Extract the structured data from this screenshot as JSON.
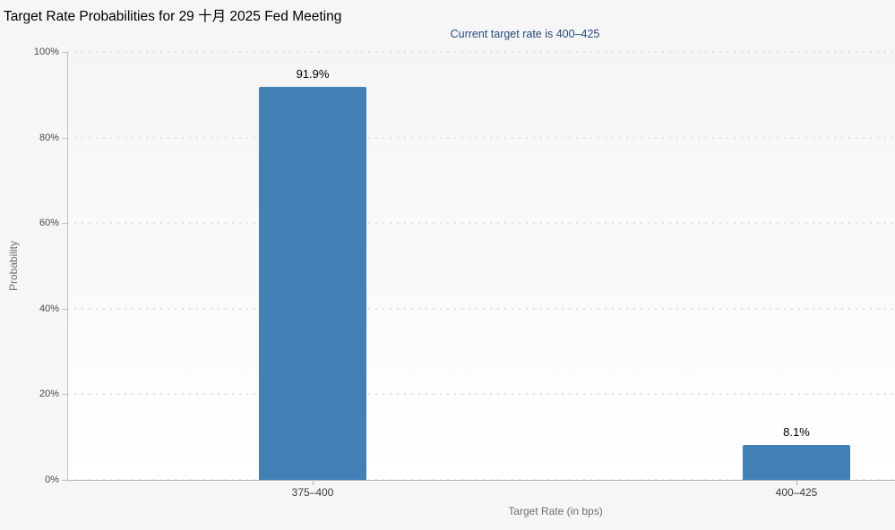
{
  "chart_data": {
    "type": "bar",
    "title": "Target Rate Probabilities for 29 十月 2025 Fed Meeting",
    "subtitle": "Current target rate is 400–425",
    "xlabel": "Target Rate (in bps)",
    "ylabel": "Probability",
    "categories": [
      "375–400",
      "400–425"
    ],
    "values": [
      91.9,
      8.1
    ],
    "value_labels": [
      "91.9%",
      "8.1%"
    ],
    "yticks": [
      "0%",
      "20%",
      "40%",
      "60%",
      "80%",
      "100%"
    ],
    "ylim": [
      0,
      100
    ],
    "grid": "horizontal-dotted",
    "legend": "none",
    "bar_color": "#4280b6"
  }
}
